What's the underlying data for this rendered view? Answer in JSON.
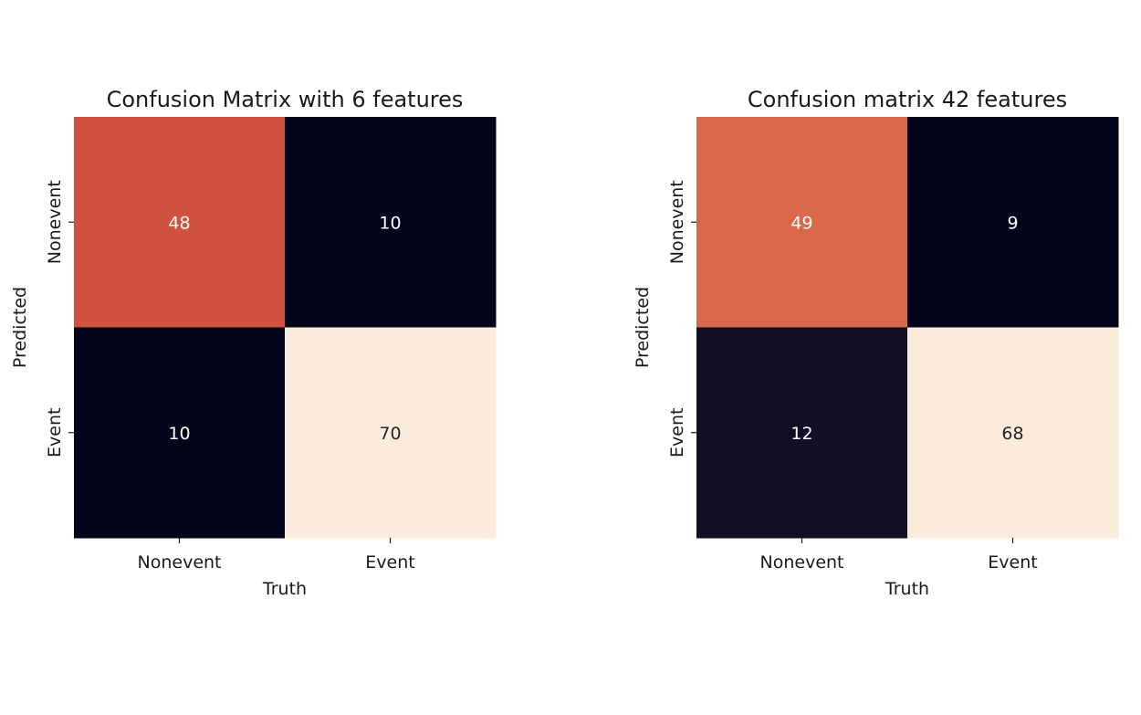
{
  "chart_data": [
    {
      "type": "heatmap",
      "title": "Confusion Matrix with 6 features",
      "xlabel": "Truth",
      "ylabel": "Predicted",
      "x_categories": [
        "Nonevent",
        "Event"
      ],
      "y_categories": [
        "Nonevent",
        "Event"
      ],
      "values": [
        [
          48,
          10
        ],
        [
          10,
          70
        ]
      ],
      "colorbar": false,
      "colors": [
        [
          "#cf513e",
          "#03051a"
        ],
        [
          "#03051a",
          "#faebdd"
        ]
      ],
      "text_colors": [
        [
          "#ffffff",
          "#ffffff"
        ],
        [
          "#ffffff",
          "#262626"
        ]
      ]
    },
    {
      "type": "heatmap",
      "title": "Confusion matrix 42 features",
      "xlabel": "Truth",
      "ylabel": "Predicted",
      "x_categories": [
        "Nonevent",
        "Event"
      ],
      "y_categories": [
        "Nonevent",
        "Event"
      ],
      "values": [
        [
          49,
          9
        ],
        [
          12,
          68
        ]
      ],
      "colorbar": false,
      "colors": [
        [
          "#d9674a",
          "#03051a"
        ],
        [
          "#130d25",
          "#faebdd"
        ]
      ],
      "text_colors": [
        [
          "#ffffff",
          "#ffffff"
        ],
        [
          "#ffffff",
          "#262626"
        ]
      ]
    }
  ]
}
